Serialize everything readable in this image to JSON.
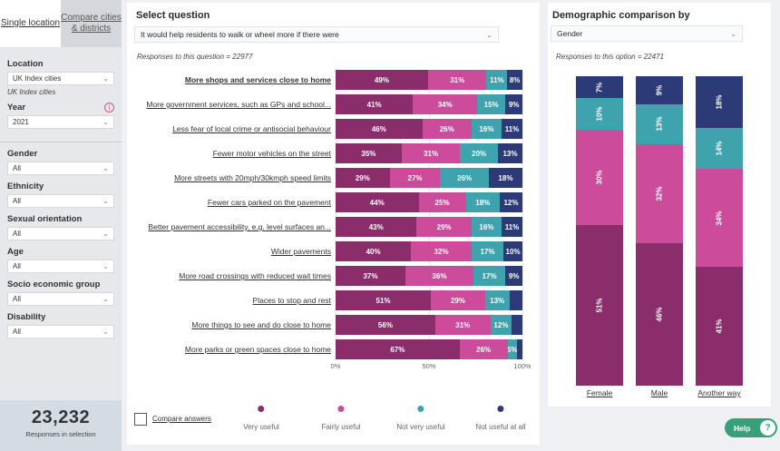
{
  "colors": {
    "very_useful": "#8b2d6b",
    "fairly_useful": "#cc4b9a",
    "not_very_useful": "#3fa3ae",
    "not_useful_at_all": "#2d3a78",
    "help": "#37a078"
  },
  "sidebar": {
    "tabs": [
      {
        "label": "Single location",
        "active": true
      },
      {
        "label": "Compare cities & districts",
        "active": false
      }
    ],
    "location": {
      "label": "Location",
      "value": "UK Index cities",
      "sub": "UK Index cities"
    },
    "year": {
      "label": "Year",
      "value": "2021",
      "info_icon": "info-icon"
    },
    "gender": {
      "label": "Gender",
      "value": "All"
    },
    "ethnicity": {
      "label": "Ethnicity",
      "value": "All"
    },
    "sexual_orientation": {
      "label": "Sexual orientation",
      "value": "All"
    },
    "age": {
      "label": "Age",
      "value": "All"
    },
    "socio": {
      "label": "Socio economic group",
      "value": "All"
    },
    "disability": {
      "label": "Disability",
      "value": "All"
    },
    "responses": {
      "value": "23,232",
      "label": "Responses in selection"
    }
  },
  "main": {
    "title": "Select question",
    "question": "It would help residents to walk or wheel more if there were",
    "responses_text": "Responses to this question = 22977",
    "rows": [
      {
        "label": "More shops and services close to home",
        "values": [
          49,
          31,
          11,
          8
        ],
        "labels": [
          "49%",
          "31%",
          "11%",
          "8%"
        ]
      },
      {
        "label": "More government services, such as GPs and school...",
        "values": [
          41,
          34,
          15,
          9
        ],
        "labels": [
          "41%",
          "34%",
          "15%",
          "9%"
        ]
      },
      {
        "label": "Less fear of local crime or antisocial behaviour",
        "values": [
          46,
          26,
          16,
          11
        ],
        "labels": [
          "46%",
          "26%",
          "16%",
          "11%"
        ]
      },
      {
        "label": "Fewer motor vehicles on the street",
        "values": [
          35,
          31,
          20,
          13
        ],
        "labels": [
          "35%",
          "31%",
          "20%",
          "13%"
        ]
      },
      {
        "label": "More streets with 20mph/30kmph speed limits",
        "values": [
          29,
          27,
          26,
          18
        ],
        "labels": [
          "29%",
          "27%",
          "26%",
          "18%"
        ]
      },
      {
        "label": "Fewer cars parked on the pavement",
        "values": [
          44,
          25,
          18,
          12
        ],
        "labels": [
          "44%",
          "25%",
          "18%",
          "12%"
        ]
      },
      {
        "label": "Better pavement accessibility, e.g. level surfaces an...",
        "values": [
          43,
          29,
          16,
          11
        ],
        "labels": [
          "43%",
          "29%",
          "16%",
          "11%"
        ]
      },
      {
        "label": "Wider pavements",
        "values": [
          40,
          32,
          17,
          10
        ],
        "labels": [
          "40%",
          "32%",
          "17%",
          "10%"
        ]
      },
      {
        "label": "More road crossings with reduced wait times",
        "values": [
          37,
          36,
          17,
          9
        ],
        "labels": [
          "37%",
          "36%",
          "17%",
          "9%"
        ]
      },
      {
        "label": "Places to stop and rest",
        "values": [
          51,
          29,
          13,
          7
        ],
        "labels": [
          "51%",
          "29%",
          "13%",
          ""
        ]
      },
      {
        "label": "More things to see and do close to home",
        "values": [
          56,
          31,
          12,
          6
        ],
        "labels": [
          "56%",
          "31%",
          "12%",
          ""
        ]
      },
      {
        "label": "More parks or green spaces close to home",
        "values": [
          67,
          26,
          5,
          3
        ],
        "labels": [
          "67%",
          "26%",
          "5%",
          ""
        ]
      }
    ],
    "axis_ticks": [
      "0%",
      "50%",
      "100%"
    ],
    "checkbox_label": "Compare answers",
    "legend": [
      "Very useful",
      "Fairly useful",
      "Not very useful",
      "Not useful at all"
    ]
  },
  "demographic": {
    "title": "Demographic comparison by",
    "select_value": "Gender",
    "responses_text": "Responses to this option = 22471",
    "columns": [
      {
        "label": "Female",
        "values": [
          51,
          30,
          10,
          7
        ],
        "labels": [
          "51%",
          "30%",
          "10%",
          "7%"
        ]
      },
      {
        "label": "Male",
        "values": [
          46,
          32,
          13,
          9
        ],
        "labels": [
          "46%",
          "32%",
          "13%",
          "9%"
        ]
      },
      {
        "label": "Another way",
        "values": [
          41,
          34,
          14,
          18
        ],
        "labels": [
          "41%",
          "34%",
          "14%",
          "18%"
        ]
      }
    ]
  },
  "help": {
    "label": "Help",
    "icon": "question-icon"
  }
}
